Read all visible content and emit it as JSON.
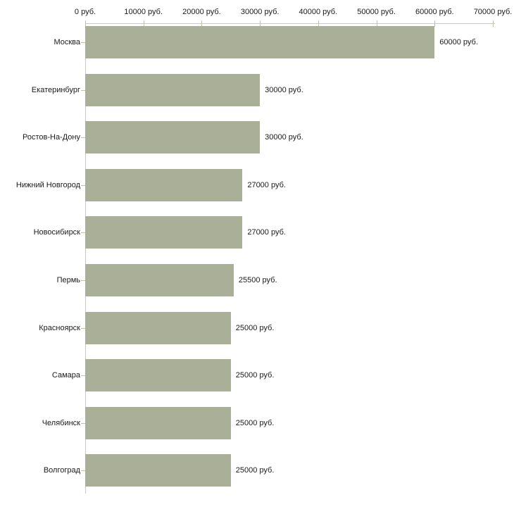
{
  "chart_data": {
    "type": "bar",
    "orientation": "horizontal",
    "title": "",
    "xlabel": "",
    "ylabel": "",
    "unit": "руб.",
    "categories": [
      "Москва",
      "Екатеринбург",
      "Ростов-На-Дону",
      "Нижний Новгород",
      "Новосибирск",
      "Пермь",
      "Красноярск",
      "Самара",
      "Челябинск",
      "Волгоград"
    ],
    "values": [
      60000,
      30000,
      30000,
      27000,
      27000,
      25500,
      25000,
      25000,
      25000,
      25000
    ],
    "value_labels": [
      "60000 руб.",
      "30000 руб.",
      "30000 руб.",
      "27000 руб.",
      "27000 руб.",
      "25500 руб.",
      "25000 руб.",
      "25000 руб.",
      "25000 руб.",
      "25000 руб."
    ],
    "x_axis": {
      "position": "top",
      "tick_values": [
        0,
        10000,
        20000,
        30000,
        40000,
        50000,
        60000,
        70000
      ],
      "tick_labels": [
        "0 руб.",
        "10000 руб.",
        "20000 руб.",
        "30000 руб.",
        "40000 руб.",
        "50000 руб.",
        "60000 руб.",
        "70000 руб."
      ]
    },
    "xlim": [
      0,
      70000
    ],
    "grid": false,
    "legend": false,
    "colors": {
      "bar": "#aab098",
      "axis_line": "#c9c9c9",
      "tick_mark": "#c2c2a2",
      "text": "#1a1a1a"
    }
  }
}
